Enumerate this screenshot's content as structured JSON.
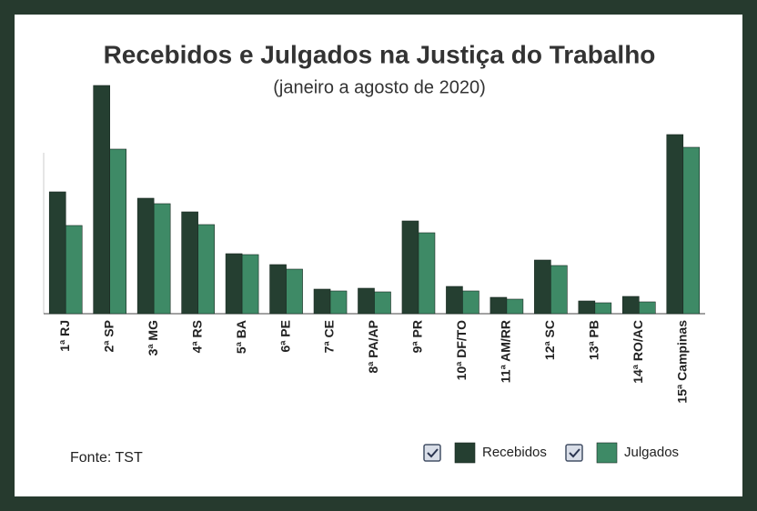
{
  "chart_data": {
    "type": "bar",
    "title": "Recebidos e Julgados na Justiça do Trabalho",
    "subtitle": "(janeiro a agosto de 2020)",
    "source": "Fonte: TST",
    "categories": [
      "1ª RJ",
      "2ª SP",
      "3ª MG",
      "4ª RS",
      "5ª BA",
      "6ª PE",
      "7ª CE",
      "8ª PA/AP",
      "9ª PR",
      "10ª DF/TO",
      "11ª AM/RR",
      "12ª SC",
      "13ª PB",
      "14ª RO/AC",
      "15ª Campinas"
    ],
    "series": [
      {
        "name": "Recebidos",
        "color": "#253f31",
        "values": [
          134,
          251,
          127,
          112,
          66,
          54,
          27,
          28,
          102,
          30,
          18,
          59,
          14,
          19,
          197
        ]
      },
      {
        "name": "Julgados",
        "color": "#3e8a66",
        "values": [
          97,
          181,
          121,
          98,
          65,
          49,
          25,
          24,
          89,
          25,
          16,
          53,
          12,
          13,
          183
        ]
      }
    ],
    "ylim": [
      0,
      255
    ]
  }
}
